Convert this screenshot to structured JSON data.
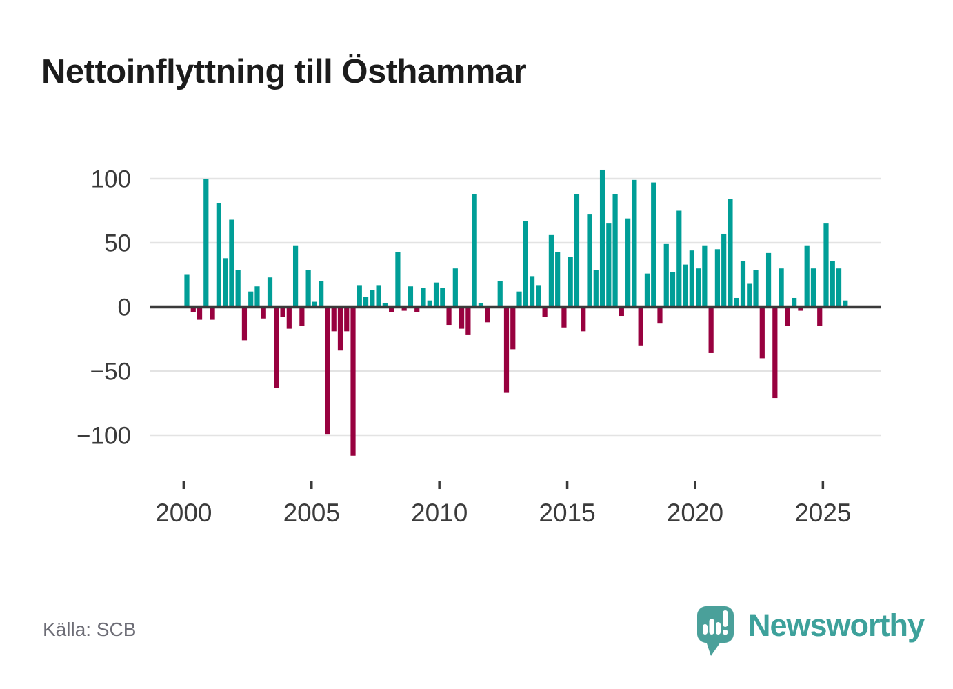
{
  "title": "Nettoinflyttning till Östhammar",
  "source": "Källa: SCB",
  "brand": {
    "name": "Newsworthy",
    "icon": "speech-bubble-bar-chart-icon",
    "color": "#3da19b"
  },
  "chart_data": {
    "type": "bar",
    "title": "Nettoinflyttning till Östhammar",
    "xlabel": "",
    "ylabel": "",
    "x_unit": "quarter",
    "x_range": "2000Q1–2025Q4",
    "ylim": [
      -120,
      115
    ],
    "grid": true,
    "legend": false,
    "y_ticks": [
      100,
      50,
      0,
      -50,
      -100
    ],
    "y_tick_labels": [
      "100",
      "50",
      "0",
      "−50",
      "−100"
    ],
    "x_tick_labels": [
      "2000",
      "2005",
      "2010",
      "2015",
      "2020",
      "2025"
    ],
    "colors": {
      "positive": "#009e97",
      "negative": "#98013f",
      "grid": "#e3e3e3",
      "axis": "#3a3a3a",
      "text": "#3b3b3b"
    },
    "categories": [
      "2000Q1",
      "2000Q2",
      "2000Q3",
      "2000Q4",
      "2001Q1",
      "2001Q2",
      "2001Q3",
      "2001Q4",
      "2002Q1",
      "2002Q2",
      "2002Q3",
      "2002Q4",
      "2003Q1",
      "2003Q2",
      "2003Q3",
      "2003Q4",
      "2004Q1",
      "2004Q2",
      "2004Q3",
      "2004Q4",
      "2005Q1",
      "2005Q2",
      "2005Q3",
      "2005Q4",
      "2006Q1",
      "2006Q2",
      "2006Q3",
      "2006Q4",
      "2007Q1",
      "2007Q2",
      "2007Q3",
      "2007Q4",
      "2008Q1",
      "2008Q2",
      "2008Q3",
      "2008Q4",
      "2009Q1",
      "2009Q2",
      "2009Q3",
      "2009Q4",
      "2010Q1",
      "2010Q2",
      "2010Q3",
      "2010Q4",
      "2011Q1",
      "2011Q2",
      "2011Q3",
      "2011Q4",
      "2012Q1",
      "2012Q2",
      "2012Q3",
      "2012Q4",
      "2013Q1",
      "2013Q2",
      "2013Q3",
      "2013Q4",
      "2014Q1",
      "2014Q2",
      "2014Q3",
      "2014Q4",
      "2015Q1",
      "2015Q2",
      "2015Q3",
      "2015Q4",
      "2016Q1",
      "2016Q2",
      "2016Q3",
      "2016Q4",
      "2017Q1",
      "2017Q2",
      "2017Q3",
      "2017Q4",
      "2018Q1",
      "2018Q2",
      "2018Q3",
      "2018Q4",
      "2019Q1",
      "2019Q2",
      "2019Q3",
      "2019Q4",
      "2020Q1",
      "2020Q2",
      "2020Q3",
      "2020Q4",
      "2021Q1",
      "2021Q2",
      "2021Q3",
      "2021Q4",
      "2022Q1",
      "2022Q2",
      "2022Q3",
      "2022Q4",
      "2023Q1",
      "2023Q2",
      "2023Q3",
      "2023Q4",
      "2024Q1",
      "2024Q2",
      "2024Q3",
      "2024Q4",
      "2025Q1",
      "2025Q2",
      "2025Q3",
      "2025Q4"
    ],
    "values": [
      25,
      -4,
      -10,
      100,
      -10,
      81,
      38,
      68,
      29,
      -26,
      12,
      16,
      -9,
      23,
      -63,
      -8,
      -17,
      48,
      -15,
      29,
      4,
      20,
      -99,
      -19,
      -34,
      -19,
      -116,
      17,
      8,
      13,
      17,
      3,
      -4,
      43,
      -3,
      16,
      -4,
      15,
      5,
      19,
      15,
      -14,
      30,
      -17,
      -22,
      88,
      3,
      -12,
      0,
      20,
      -67,
      -33,
      12,
      67,
      24,
      17,
      -8,
      56,
      43,
      -16,
      39,
      88,
      -19,
      72,
      29,
      107,
      65,
      88,
      -7,
      69,
      99,
      -30,
      26,
      97,
      -13,
      49,
      27,
      75,
      33,
      44,
      30,
      48,
      -36,
      45,
      57,
      84,
      7,
      36,
      18,
      29,
      -40,
      42,
      -71,
      30,
      -15,
      7,
      -3,
      48,
      30,
      -15,
      65,
      36,
      30,
      5
    ]
  }
}
